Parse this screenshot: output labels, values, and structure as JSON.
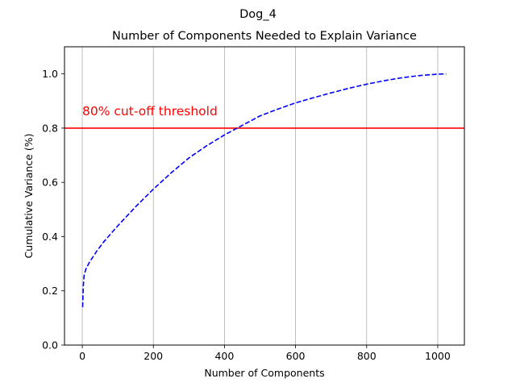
{
  "chart_data": {
    "type": "line",
    "suptitle": "Dog_4",
    "title": "Number of Components Needed to Explain Variance",
    "xlabel": "Number of Components",
    "ylabel": "Cumulative Variance (%)",
    "xlim": [
      -50,
      1075
    ],
    "ylim": [
      0.0,
      1.1
    ],
    "xticks": [
      0,
      200,
      400,
      600,
      800,
      1000
    ],
    "yticks": [
      0.0,
      0.2,
      0.4,
      0.6,
      0.8,
      1.0
    ],
    "xtick_labels": [
      "0",
      "200",
      "400",
      "600",
      "800",
      "1000"
    ],
    "ytick_labels": [
      "0.0",
      "0.2",
      "0.4",
      "0.6",
      "0.8",
      "1.0"
    ],
    "grid": "vertical",
    "series": [
      {
        "color": "#0000ff",
        "linestyle": "dashed",
        "x": [
          1,
          3,
          5,
          10,
          20,
          40,
          60,
          80,
          100,
          150,
          200,
          250,
          300,
          350,
          400,
          450,
          500,
          550,
          600,
          650,
          700,
          750,
          800,
          850,
          900,
          950,
          1000,
          1024
        ],
        "y": [
          0.14,
          0.22,
          0.255,
          0.28,
          0.305,
          0.345,
          0.38,
          0.41,
          0.44,
          0.51,
          0.575,
          0.635,
          0.69,
          0.735,
          0.775,
          0.81,
          0.845,
          0.87,
          0.893,
          0.912,
          0.93,
          0.947,
          0.962,
          0.975,
          0.986,
          0.994,
          0.999,
          1.0
        ]
      }
    ],
    "threshold": {
      "y": 0.8,
      "color": "#ff0000",
      "label": "80% cut-off threshold"
    }
  }
}
